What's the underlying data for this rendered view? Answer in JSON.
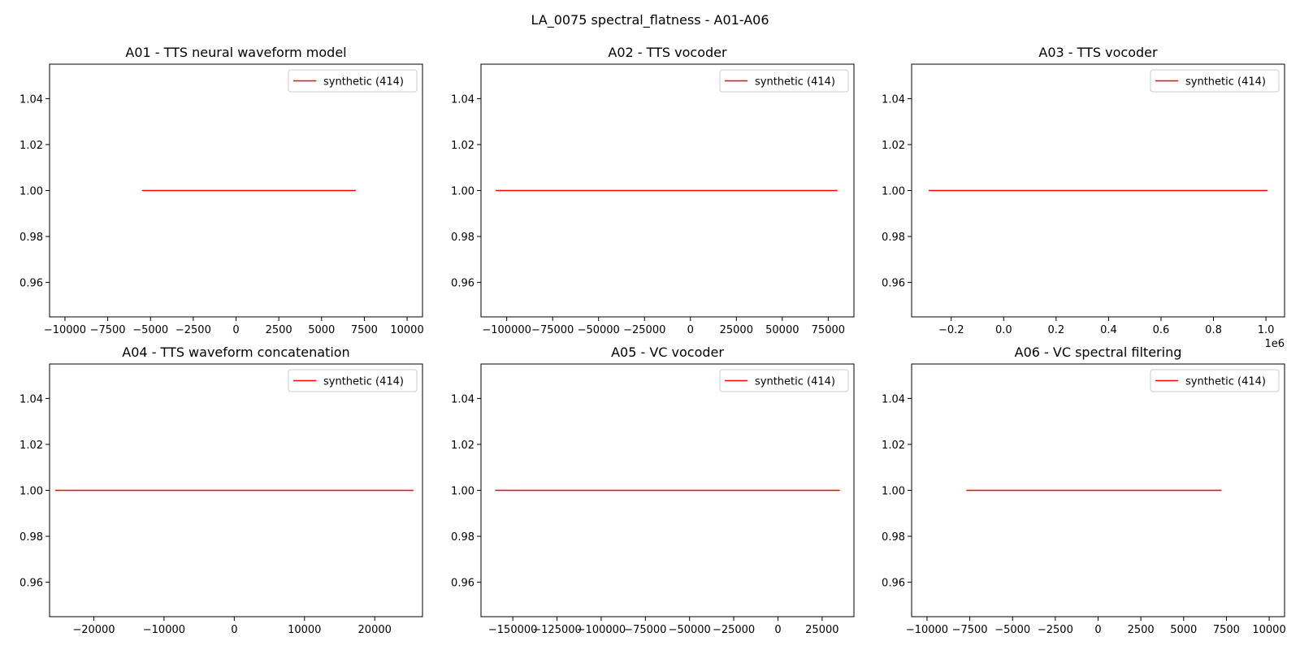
{
  "suptitle": "LA_0075 spectral_flatness - A01-A06",
  "colors": {
    "series": "#ff0000",
    "axes": "#000000",
    "legend_border": "#cccccc"
  },
  "chart_data": [
    {
      "type": "line",
      "title": "A01 - TTS neural waveform model",
      "xlabel": "",
      "ylabel": "",
      "xlim": [
        -10900,
        10900
      ],
      "ylim": [
        0.945,
        1.055
      ],
      "xticks": [
        -10000,
        -7500,
        -5000,
        -2500,
        0,
        2500,
        5000,
        7500,
        10000
      ],
      "xtick_labels": [
        "−10000",
        "−7500",
        "−5000",
        "−2500",
        "0",
        "2500",
        "5000",
        "7500",
        "10000"
      ],
      "yticks": [
        0.96,
        0.98,
        1.0,
        1.02,
        1.04
      ],
      "ytick_labels": [
        "0.96",
        "0.98",
        "1.00",
        "1.02",
        "1.04"
      ],
      "x_offset_label": "",
      "legend": "top-right",
      "grid": false,
      "series": [
        {
          "name": "synthetic (414)",
          "color": "#ff0000",
          "x": [
            -5500,
            7000
          ],
          "y": [
            1.0,
            1.0
          ]
        }
      ]
    },
    {
      "type": "line",
      "title": "A02 - TTS vocoder",
      "xlabel": "",
      "ylabel": "",
      "xlim": [
        -114000,
        89000
      ],
      "ylim": [
        0.945,
        1.055
      ],
      "xticks": [
        -100000,
        -75000,
        -50000,
        -25000,
        0,
        25000,
        50000,
        75000
      ],
      "xtick_labels": [
        "−100000",
        "−75000",
        "−50000",
        "−25000",
        "0",
        "25000",
        "50000",
        "75000"
      ],
      "yticks": [
        0.96,
        0.98,
        1.0,
        1.02,
        1.04
      ],
      "ytick_labels": [
        "0.96",
        "0.98",
        "1.00",
        "1.02",
        "1.04"
      ],
      "x_offset_label": "",
      "legend": "top-right",
      "grid": false,
      "series": [
        {
          "name": "synthetic (414)",
          "color": "#ff0000",
          "x": [
            -106000,
            80000
          ],
          "y": [
            1.0,
            1.0
          ]
        }
      ]
    },
    {
      "type": "line",
      "title": "A03 - TTS vocoder",
      "xlabel": "",
      "ylabel": "",
      "xlim": [
        -0.351,
        1.071
      ],
      "ylim": [
        0.945,
        1.055
      ],
      "xticks": [
        -0.2,
        0.0,
        0.2,
        0.4,
        0.6,
        0.8,
        1.0
      ],
      "xtick_labels": [
        "−0.2",
        "0.0",
        "0.2",
        "0.4",
        "0.6",
        "0.8",
        "1.0"
      ],
      "yticks": [
        0.96,
        0.98,
        1.0,
        1.02,
        1.04
      ],
      "ytick_labels": [
        "0.96",
        "0.98",
        "1.00",
        "1.02",
        "1.04"
      ],
      "x_offset_label": "1e6",
      "legend": "top-right",
      "grid": false,
      "series": [
        {
          "name": "synthetic (414)",
          "color": "#ff0000",
          "x": [
            -0.286,
            1.006
          ],
          "y": [
            1.0,
            1.0
          ]
        }
      ]
    },
    {
      "type": "line",
      "title": "A04 - TTS waveform concatenation",
      "xlabel": "",
      "ylabel": "",
      "xlim": [
        -26300,
        26800
      ],
      "ylim": [
        0.945,
        1.055
      ],
      "xticks": [
        -20000,
        -10000,
        0,
        10000,
        20000
      ],
      "xtick_labels": [
        "−20000",
        "−10000",
        "0",
        "10000",
        "20000"
      ],
      "yticks": [
        0.96,
        0.98,
        1.0,
        1.02,
        1.04
      ],
      "ytick_labels": [
        "0.96",
        "0.98",
        "1.00",
        "1.02",
        "1.04"
      ],
      "x_offset_label": "",
      "legend": "top-right",
      "grid": false,
      "series": [
        {
          "name": "synthetic (414)",
          "color": "#ff0000",
          "x": [
            -25500,
            25500
          ],
          "y": [
            1.0,
            1.0
          ]
        }
      ]
    },
    {
      "type": "line",
      "title": "A05 - VC vocoder",
      "xlabel": "",
      "ylabel": "",
      "xlim": [
        -168000,
        43000
      ],
      "ylim": [
        0.945,
        1.055
      ],
      "xticks": [
        -150000,
        -125000,
        -100000,
        -75000,
        -50000,
        -25000,
        0,
        25000
      ],
      "xtick_labels": [
        "−150000",
        "−125000",
        "−100000",
        "−75000",
        "−50000",
        "−25000",
        "0",
        "25000"
      ],
      "yticks": [
        0.96,
        0.98,
        1.0,
        1.02,
        1.04
      ],
      "ytick_labels": [
        "0.96",
        "0.98",
        "1.00",
        "1.02",
        "1.04"
      ],
      "x_offset_label": "",
      "legend": "top-right",
      "grid": false,
      "series": [
        {
          "name": "synthetic (414)",
          "color": "#ff0000",
          "x": [
            -160000,
            35000
          ],
          "y": [
            1.0,
            1.0
          ]
        }
      ]
    },
    {
      "type": "line",
      "title": "A06 - VC spectral filtering",
      "xlabel": "",
      "ylabel": "",
      "xlim": [
        -10900,
        10900
      ],
      "ylim": [
        0.945,
        1.055
      ],
      "xticks": [
        -10000,
        -7500,
        -5000,
        -2500,
        0,
        2500,
        5000,
        7500,
        10000
      ],
      "xtick_labels": [
        "−10000",
        "−7500",
        "−5000",
        "−2500",
        "0",
        "2500",
        "5000",
        "7500",
        "10000"
      ],
      "yticks": [
        0.96,
        0.98,
        1.0,
        1.02,
        1.04
      ],
      "ytick_labels": [
        "0.96",
        "0.98",
        "1.00",
        "1.02",
        "1.04"
      ],
      "x_offset_label": "",
      "legend": "top-right",
      "grid": false,
      "series": [
        {
          "name": "synthetic (414)",
          "color": "#ff0000",
          "x": [
            -7700,
            7200
          ],
          "y": [
            1.0,
            1.0
          ]
        }
      ]
    }
  ]
}
